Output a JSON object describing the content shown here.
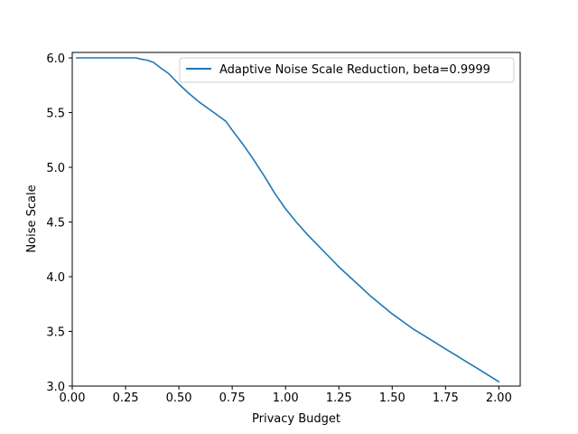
{
  "chart_data": {
    "type": "line",
    "xlabel": "Privacy Budget",
    "ylabel": "Noise Scale",
    "xlim": [
      0.0,
      2.1
    ],
    "ylim": [
      3.0,
      6.05
    ],
    "xticks": [
      "0.00",
      "0.25",
      "0.50",
      "0.75",
      "1.00",
      "1.25",
      "1.50",
      "1.75",
      "2.00"
    ],
    "yticks": [
      "3.0",
      "3.5",
      "4.0",
      "4.5",
      "5.0",
      "5.5",
      "6.0"
    ],
    "grid": false,
    "legend_position": "top-right",
    "series": [
      {
        "name": "Adaptive Noise Scale Reduction, beta=0.9999",
        "color": "#1f77b4",
        "x": [
          0.02,
          0.1,
          0.2,
          0.3,
          0.32,
          0.35,
          0.38,
          0.4,
          0.42,
          0.45,
          0.48,
          0.5,
          0.55,
          0.6,
          0.65,
          0.7,
          0.72,
          0.75,
          0.8,
          0.85,
          0.9,
          0.95,
          1.0,
          1.05,
          1.1,
          1.15,
          1.2,
          1.25,
          1.3,
          1.35,
          1.4,
          1.45,
          1.5,
          1.55,
          1.6,
          1.65,
          1.7,
          1.75,
          1.8,
          1.85,
          1.9,
          1.95,
          2.0
        ],
        "y": [
          6.0,
          6.0,
          6.0,
          6.0,
          5.99,
          5.98,
          5.96,
          5.93,
          5.9,
          5.86,
          5.8,
          5.76,
          5.67,
          5.59,
          5.52,
          5.45,
          5.42,
          5.34,
          5.21,
          5.07,
          4.92,
          4.76,
          4.62,
          4.5,
          4.39,
          4.29,
          4.19,
          4.09,
          4.0,
          3.91,
          3.82,
          3.74,
          3.66,
          3.59,
          3.52,
          3.46,
          3.4,
          3.34,
          3.28,
          3.22,
          3.16,
          3.1,
          3.04
        ]
      }
    ]
  }
}
